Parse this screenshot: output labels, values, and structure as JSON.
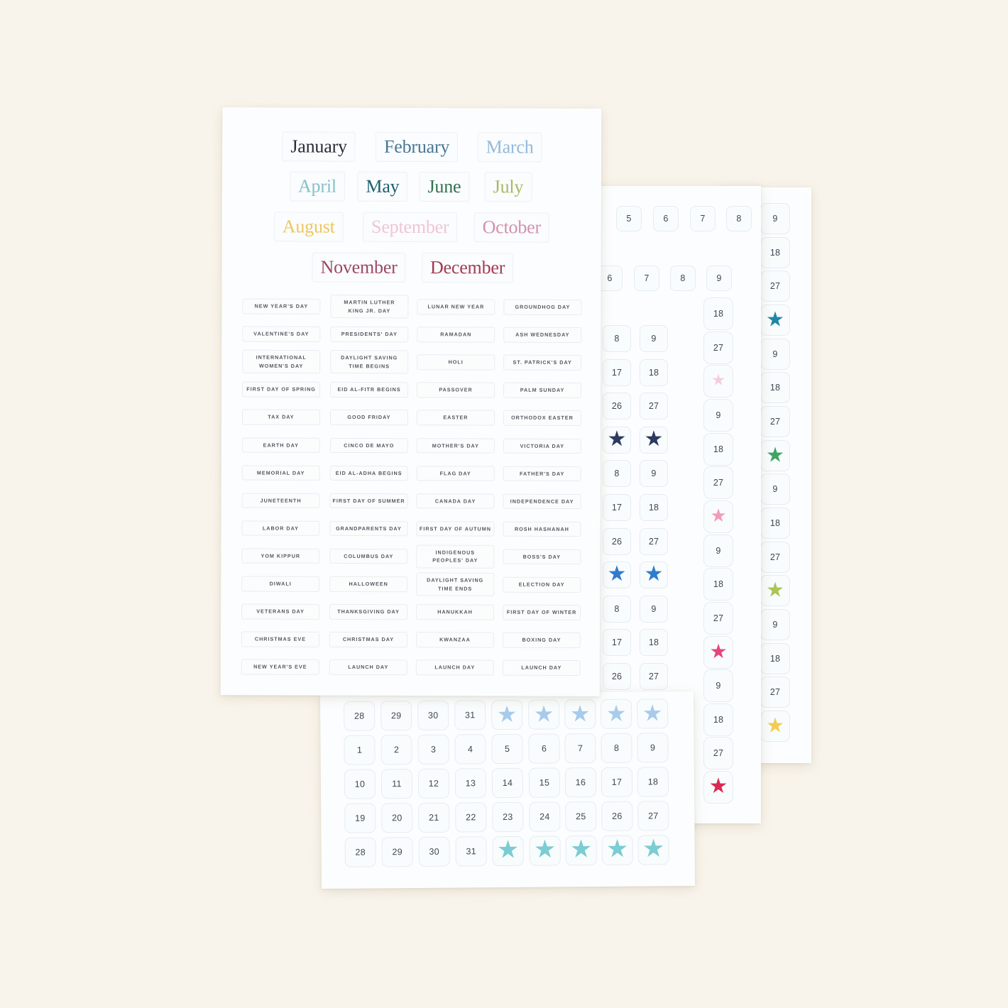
{
  "scene": {
    "description": "Three overlapping white calendar sticker sheets on a cream background: month-name and holiday label stickers, date-number stickers and colored star stickers",
    "background_color": "#f9f4eb",
    "sheet_color": "#fcfdfe"
  },
  "months_sheet": {
    "months": [
      {
        "name": "January",
        "color": "#2a2c36"
      },
      {
        "name": "February",
        "color": "#4a7795"
      },
      {
        "name": "March",
        "color": "#93badb"
      },
      {
        "name": "April",
        "color": "#85c0c9"
      },
      {
        "name": "May",
        "color": "#1d5f71"
      },
      {
        "name": "June",
        "color": "#35704f"
      },
      {
        "name": "July",
        "color": "#a7ba62"
      },
      {
        "name": "August",
        "color": "#edc65e"
      },
      {
        "name": "September",
        "color": "#f0c5d5"
      },
      {
        "name": "October",
        "color": "#d391ab"
      },
      {
        "name": "November",
        "color": "#9d4760"
      },
      {
        "name": "December",
        "color": "#a43a52"
      }
    ],
    "holidays": [
      [
        "NEW YEAR'S DAY",
        "MARTIN LUTHER\nKING JR. DAY",
        "LUNAR NEW YEAR",
        "GROUNDHOG DAY"
      ],
      [
        "VALENTINE'S DAY",
        "PRESIDENTS' DAY",
        "RAMADAN",
        "ASH WEDNESDAY"
      ],
      [
        "INTERNATIONAL\nWOMEN'S DAY",
        "DAYLIGHT SAVING\nTIME BEGINS",
        "HOLI",
        "ST. PATRICK'S DAY"
      ],
      [
        "FIRST DAY OF SPRING",
        "EID AL-FITR BEGINS",
        "PASSOVER",
        "PALM SUNDAY"
      ],
      [
        "TAX DAY",
        "GOOD FRIDAY",
        "EASTER",
        "ORTHODOX EASTER"
      ],
      [
        "EARTH DAY",
        "CINCO DE MAYO",
        "MOTHER'S DAY",
        "VICTORIA DAY"
      ],
      [
        "MEMORIAL DAY",
        "EID AL-ADHA BEGINS",
        "FLAG DAY",
        "FATHER'S DAY"
      ],
      [
        "JUNETEENTH",
        "FIRST DAY OF SUMMER",
        "CANADA DAY",
        "INDEPENDENCE DAY"
      ],
      [
        "LABOR DAY",
        "GRANDPARENTS DAY",
        "FIRST DAY OF AUTUMN",
        "ROSH HASHANAH"
      ],
      [
        "YOM KIPPUR",
        "COLUMBUS DAY",
        "INDIGENOUS\nPEOPLES' DAY",
        "BOSS'S DAY"
      ],
      [
        "DIWALI",
        "HALLOWEEN",
        "DAYLIGHT SAVING\nTIME ENDS",
        "ELECTION DAY"
      ],
      [
        "VETERANS DAY",
        "THANKSGIVING DAY",
        "HANUKKAH",
        "FIRST DAY OF WINTER"
      ],
      [
        "CHRISTMAS EVE",
        "CHRISTMAS DAY",
        "KWANZAA",
        "BOXING DAY"
      ],
      [
        "NEW YEAR'S EVE",
        "LAUNCH DAY",
        "LAUNCH DAY",
        "LAUNCH DAY"
      ]
    ]
  },
  "middle_sheet": {
    "row_a": [
      "5",
      "6",
      "7",
      "8"
    ],
    "row_b": [
      "6",
      "7",
      "8",
      "9"
    ],
    "pair_rows": [
      [
        "8",
        "9"
      ],
      [
        "17",
        "18"
      ],
      [
        "26",
        "27"
      ],
      {
        "star": "#2b3a5e"
      },
      [
        "8",
        "9"
      ],
      [
        "17",
        "18"
      ],
      [
        "26",
        "27"
      ],
      {
        "star": "#2e7ccd"
      },
      [
        "8",
        "9"
      ],
      [
        "17",
        "18"
      ],
      [
        "26",
        "27"
      ]
    ],
    "side_column": [
      "18",
      "27",
      {
        "star": "#f3cddc"
      },
      "9",
      "18",
      "27",
      {
        "star": "#f49ab9"
      },
      "9",
      "18",
      "27",
      {
        "star": "#e8437c"
      },
      "9",
      "18",
      "27",
      {
        "star": "#d92a54"
      }
    ]
  },
  "right_sheet": {
    "column": [
      "9",
      "18",
      "27",
      {
        "star": "#1f86a5"
      },
      "9",
      "18",
      "27",
      {
        "star": "#3ea463"
      },
      "9",
      "18",
      "27",
      {
        "star": "#a9c657"
      },
      "9",
      "18",
      "27",
      {
        "star": "#f5cb50"
      }
    ]
  },
  "bottom_sheet": {
    "rows": [
      [
        "28",
        "29",
        "30",
        "31",
        {
          "star": "#a8cbec"
        },
        {
          "star": "#a8cbec"
        },
        {
          "star": "#a8cbec"
        },
        {
          "star": "#a8cbec"
        },
        {
          "star": "#a8cbec"
        }
      ],
      [
        "1",
        "2",
        "3",
        "4",
        "5",
        "6",
        "7",
        "8",
        "9"
      ],
      [
        "10",
        "11",
        "12",
        "13",
        "14",
        "15",
        "16",
        "17",
        "18"
      ],
      [
        "19",
        "20",
        "21",
        "22",
        "23",
        "24",
        "25",
        "26",
        "27"
      ],
      [
        "28",
        "29",
        "30",
        "31",
        {
          "star": "#7bccd3"
        },
        {
          "star": "#7bccd3"
        },
        {
          "star": "#7bccd3"
        },
        {
          "star": "#7bccd3"
        },
        {
          "star": "#7bccd3"
        }
      ]
    ]
  }
}
